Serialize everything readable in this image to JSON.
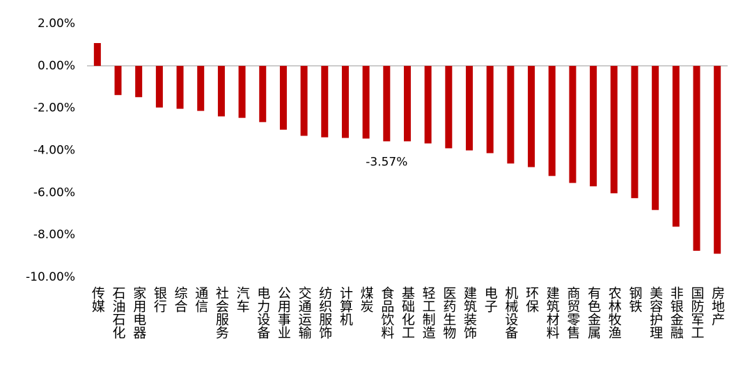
{
  "chart_data": {
    "type": "bar",
    "categories": [
      "传媒",
      "石油石化",
      "家用电器",
      "银行",
      "综合",
      "通信",
      "社会服务",
      "汽车",
      "电力设备",
      "公用事业",
      "交通运输",
      "纺织服饰",
      "计算机",
      "煤炭",
      "食品饮料",
      "基础化工",
      "轻工制造",
      "医药生物",
      "建筑装饰",
      "电子",
      "机械设备",
      "环保",
      "建筑材料",
      "商贸零售",
      "有色金属",
      "农林牧渔",
      "钢铁",
      "美容护理",
      "非银金融",
      "国防军工",
      "房地产"
    ],
    "values": [
      1.08,
      -1.38,
      -1.48,
      -1.97,
      -2.03,
      -2.13,
      -2.39,
      -2.46,
      -2.66,
      -3.02,
      -3.31,
      -3.38,
      -3.41,
      -3.44,
      -3.57,
      -3.57,
      -3.67,
      -3.9,
      -4.0,
      -4.13,
      -4.62,
      -4.79,
      -5.21,
      -5.54,
      -5.7,
      -6.03,
      -6.26,
      -6.82,
      -7.61,
      -8.75,
      -8.89
    ],
    "value_labels": [
      null,
      null,
      null,
      null,
      null,
      null,
      null,
      null,
      null,
      null,
      null,
      null,
      null,
      null,
      "-3.57%",
      null,
      null,
      null,
      null,
      null,
      null,
      null,
      null,
      null,
      null,
      null,
      null,
      null,
      null,
      null,
      null
    ],
    "color": "#c00000",
    "ylim": [
      -10,
      2
    ],
    "yticks": [
      {
        "value": 2,
        "label": "2.00%"
      },
      {
        "value": 0,
        "label": "0.00%"
      },
      {
        "value": -2,
        "label": "-2.00%"
      },
      {
        "value": -4,
        "label": "-4.00%"
      },
      {
        "value": -6,
        "label": "-6.00%"
      },
      {
        "value": -8,
        "label": "-8.00%"
      },
      {
        "value": -10,
        "label": "-10.00%"
      }
    ],
    "grid": false
  }
}
